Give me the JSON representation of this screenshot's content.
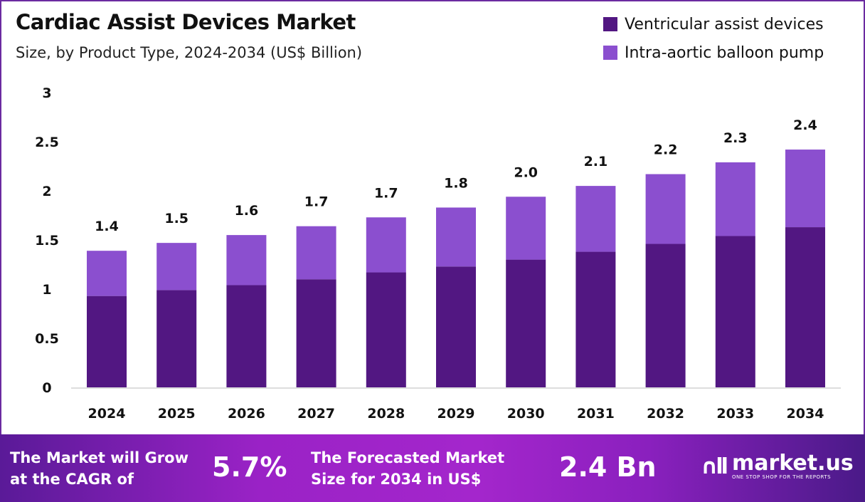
{
  "chart_data": {
    "type": "bar",
    "stacked": true,
    "title": "Cardiac Assist Devices Market",
    "subtitle": "Size, by Product Type, 2024-2034 (US$ Billion)",
    "categories": [
      "2024",
      "2025",
      "2026",
      "2027",
      "2028",
      "2029",
      "2030",
      "2031",
      "2032",
      "2033",
      "2034"
    ],
    "series": [
      {
        "name": "Ventricular assist devices",
        "color": "#521782",
        "values": [
          0.93,
          0.99,
          1.04,
          1.1,
          1.17,
          1.23,
          1.3,
          1.38,
          1.46,
          1.54,
          1.63
        ]
      },
      {
        "name": "Intra-aortic balloon pump",
        "color": "#8b4fcf",
        "values": [
          0.46,
          0.48,
          0.51,
          0.54,
          0.56,
          0.6,
          0.64,
          0.67,
          0.71,
          0.75,
          0.79
        ]
      }
    ],
    "totals_labels": [
      "1.4",
      "1.5",
      "1.6",
      "1.7",
      "1.7",
      "1.8",
      "2.0",
      "2.1",
      "2.2",
      "2.3",
      "2.4"
    ],
    "ylim": [
      0,
      3
    ],
    "yticks": [
      "0",
      "0.5",
      "1",
      "1.5",
      "2",
      "2.5",
      "3"
    ],
    "grid": false,
    "legend_position": "top-right"
  },
  "footer": {
    "cagr_text_1": "The Market will Grow",
    "cagr_text_2": "at the CAGR of",
    "cagr_value": "5.7%",
    "forecast_text_1": "The Forecasted Market",
    "forecast_text_2": "Size for 2034 in US$",
    "forecast_value": "2.4 Bn",
    "logo_name": "market.us",
    "logo_tagline": "ONE STOP SHOP FOR THE REPORTS"
  }
}
